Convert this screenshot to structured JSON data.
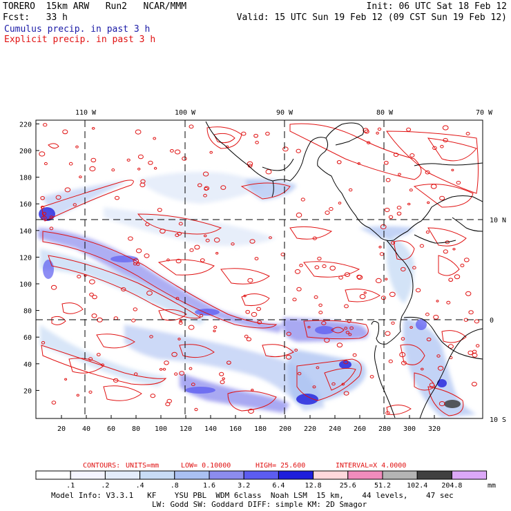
{
  "header": {
    "model": "TORERO  15km ARW   Run2   NCAR/MMM",
    "init": "Init: 06 UTC Sat 18 Feb 12",
    "fcst": "Fcst:   33 h",
    "valid": "Valid: 15 UTC Sun 19 Feb 12 (09 CST Sun 19 Feb 12)",
    "line_cumulus": "Cumulus precip. in past 3 h",
    "line_explicit": "Explicit precip. in past 3 h"
  },
  "map": {
    "lon_labels": [
      "110 W",
      "100 W",
      "90 W",
      "80 W",
      "70 W"
    ],
    "lat_labels": [
      "10 N",
      "0",
      "10 S"
    ],
    "y_ticks": [
      "220",
      "200",
      "180",
      "160",
      "140",
      "120",
      "100",
      "80",
      "60",
      "40",
      "20"
    ],
    "x_ticks": [
      "20",
      "40",
      "60",
      "80",
      "100",
      "120",
      "140",
      "160",
      "180",
      "200",
      "220",
      "240",
      "260",
      "280",
      "300",
      "320"
    ]
  },
  "contours_info": {
    "contours": "CONTOURS:",
    "units": "UNITS=mm",
    "low": "LOW= 0.10000",
    "high": "HIGH=  25.600",
    "interval": "INTERVAL=X  4.0000"
  },
  "colorbar": {
    "labels": [
      ".1",
      ".2",
      ".4",
      ".8",
      "1.6",
      "3.2",
      "6.4",
      "12.8",
      "25.6",
      "51.2",
      "102.4",
      "204.8"
    ],
    "unit": "mm",
    "colors": [
      "#ffffff",
      "#f4f4ff",
      "#e4ecfa",
      "#c8dcf5",
      "#aac0f2",
      "#8c8cee",
      "#5c5cf0",
      "#1e1edc",
      "#ffd8dc",
      "#f08cbc",
      "#b4b4b4",
      "#404040",
      "#dca8f8"
    ]
  },
  "footer": {
    "line1": "Model Info: V3.3.1   KF    YSU PBL  WDM 6class  Noah LSM  15 km,    44 levels,    47 sec",
    "line2": "LW: Godd SW: Goddard DIFF: simple KM: 2D Smagor"
  }
}
